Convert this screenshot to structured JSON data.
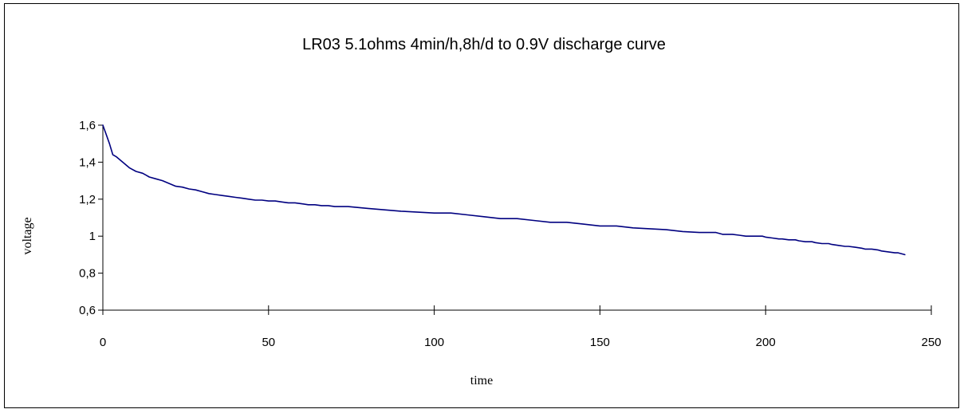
{
  "chart_data": {
    "type": "line",
    "title": "LR03  5.1ohms 4min/h,8h/d to 0.9V discharge curve",
    "xlabel": "time",
    "ylabel": "voltage",
    "xlim": [
      0,
      250
    ],
    "ylim": [
      0.6,
      1.6
    ],
    "xticks": [
      0,
      50,
      100,
      150,
      200,
      250
    ],
    "xtick_labels": [
      "0",
      "50",
      "100",
      "150",
      "200",
      "250"
    ],
    "yticks": [
      0.6,
      0.8,
      1.0,
      1.2,
      1.4,
      1.6
    ],
    "ytick_labels": [
      "0,6",
      "0,8",
      "1",
      "1,2",
      "1,4",
      "1,6"
    ],
    "grid": false,
    "legend": "none",
    "series": [
      {
        "color": "#000080",
        "x": [
          0,
          1,
          2,
          3,
          4,
          6,
          8,
          10,
          12,
          13,
          14,
          16,
          18,
          20,
          22,
          24,
          26,
          28,
          30,
          32,
          34,
          36,
          38,
          40,
          42,
          44,
          46,
          48,
          50,
          52,
          54,
          56,
          58,
          60,
          62,
          64,
          66,
          68,
          70,
          72,
          74,
          80,
          90,
          100,
          105,
          110,
          115,
          120,
          125,
          130,
          135,
          140,
          145,
          150,
          155,
          160,
          165,
          170,
          175,
          180,
          185,
          187,
          189,
          190,
          192,
          194,
          195,
          197,
          199,
          200,
          202,
          204,
          205,
          207,
          209,
          210,
          212,
          214,
          215,
          217,
          219,
          220,
          222,
          224,
          225,
          227,
          229,
          230,
          232,
          234,
          235,
          237,
          239,
          240,
          242
        ],
        "y": [
          1.6,
          1.55,
          1.5,
          1.44,
          1.43,
          1.4,
          1.37,
          1.35,
          1.34,
          1.33,
          1.32,
          1.31,
          1.3,
          1.285,
          1.27,
          1.265,
          1.255,
          1.25,
          1.24,
          1.23,
          1.225,
          1.22,
          1.215,
          1.21,
          1.205,
          1.2,
          1.195,
          1.195,
          1.19,
          1.19,
          1.185,
          1.18,
          1.18,
          1.175,
          1.17,
          1.17,
          1.165,
          1.165,
          1.16,
          1.16,
          1.16,
          1.15,
          1.135,
          1.125,
          1.125,
          1.115,
          1.105,
          1.095,
          1.095,
          1.085,
          1.075,
          1.075,
          1.065,
          1.055,
          1.055,
          1.045,
          1.04,
          1.035,
          1.025,
          1.02,
          1.02,
          1.01,
          1.01,
          1.01,
          1.005,
          1.0,
          1.0,
          1.0,
          1.0,
          0.995,
          0.99,
          0.985,
          0.985,
          0.98,
          0.98,
          0.975,
          0.97,
          0.97,
          0.965,
          0.96,
          0.96,
          0.955,
          0.95,
          0.945,
          0.945,
          0.94,
          0.935,
          0.93,
          0.93,
          0.925,
          0.92,
          0.915,
          0.91,
          0.91,
          0.9
        ]
      }
    ]
  }
}
